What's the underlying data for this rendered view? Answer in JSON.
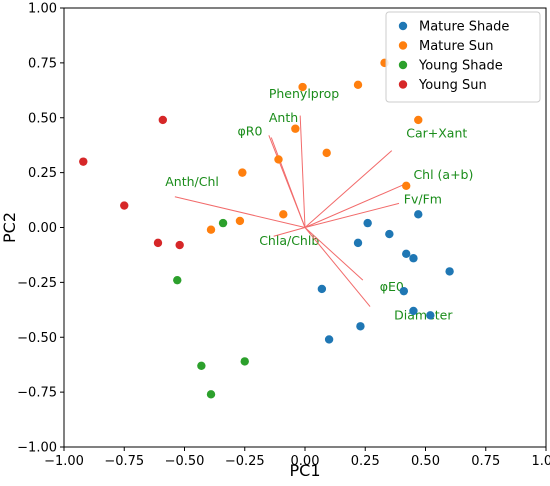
{
  "chart_data": {
    "type": "scatter",
    "xlabel": "PC1",
    "ylabel": "PC2",
    "xlim": [
      -1.0,
      1.0
    ],
    "ylim": [
      -1.0,
      1.0
    ],
    "xticks": [
      "−1.00",
      "−0.75",
      "−0.50",
      "−0.25",
      "0.00",
      "0.25",
      "0.50",
      "0.75",
      "1.00"
    ],
    "yticks": [
      "−1.00",
      "−0.75",
      "−0.50",
      "−0.25",
      "0.00",
      "0.25",
      "0.50",
      "0.75",
      "1.00"
    ],
    "xtick_values": [
      -1.0,
      -0.75,
      -0.5,
      -0.25,
      0.0,
      0.25,
      0.5,
      0.75,
      1.0
    ],
    "ytick_values": [
      -1.0,
      -0.75,
      -0.5,
      -0.25,
      0.0,
      0.25,
      0.5,
      0.75,
      1.0
    ],
    "grid": false,
    "legend_position": "top-right",
    "series": [
      {
        "name": "Mature Shade",
        "color": "#1f77b4",
        "points": [
          [
            0.26,
            0.02
          ],
          [
            0.22,
            -0.07
          ],
          [
            0.35,
            -0.03
          ],
          [
            0.42,
            -0.12
          ],
          [
            0.45,
            -0.14
          ],
          [
            0.47,
            0.06
          ],
          [
            0.6,
            -0.2
          ],
          [
            0.07,
            -0.28
          ],
          [
            0.41,
            -0.29
          ],
          [
            0.1,
            -0.51
          ],
          [
            0.23,
            -0.45
          ],
          [
            0.45,
            -0.38
          ],
          [
            0.52,
            -0.4
          ]
        ]
      },
      {
        "name": "Mature Sun",
        "color": "#ff7f0e",
        "points": [
          [
            -0.01,
            0.64
          ],
          [
            0.22,
            0.65
          ],
          [
            0.33,
            0.75
          ],
          [
            0.47,
            0.49
          ],
          [
            -0.04,
            0.45
          ],
          [
            -0.11,
            0.31
          ],
          [
            0.09,
            0.34
          ],
          [
            -0.26,
            0.25
          ],
          [
            0.42,
            0.19
          ],
          [
            -0.09,
            0.06
          ],
          [
            -0.27,
            0.03
          ],
          [
            -0.39,
            -0.01
          ]
        ]
      },
      {
        "name": "Young Shade",
        "color": "#2ca02c",
        "points": [
          [
            -0.34,
            0.02
          ],
          [
            -0.53,
            -0.24
          ],
          [
            -0.43,
            -0.63
          ],
          [
            -0.25,
            -0.61
          ],
          [
            -0.39,
            -0.76
          ]
        ]
      },
      {
        "name": "Young Sun",
        "color": "#d62728",
        "points": [
          [
            -0.59,
            0.49
          ],
          [
            -0.92,
            0.3
          ],
          [
            -0.75,
            0.1
          ],
          [
            -0.61,
            -0.07
          ],
          [
            -0.52,
            -0.08
          ]
        ]
      }
    ],
    "loadings": [
      {
        "label": "Phenylprop",
        "end": [
          -0.02,
          0.51
        ],
        "label_at": [
          -0.15,
          0.59
        ]
      },
      {
        "label": "Anth",
        "end": [
          -0.15,
          0.42
        ],
        "label_at": [
          -0.15,
          0.48
        ]
      },
      {
        "label": "φR0",
        "end": [
          -0.14,
          0.41
        ],
        "label_at": [
          -0.28,
          0.42
        ]
      },
      {
        "label": "Anth/Chl",
        "end": [
          -0.54,
          0.14
        ],
        "label_at": [
          -0.58,
          0.19
        ]
      },
      {
        "label": "Car+Xant",
        "end": [
          0.36,
          0.35
        ],
        "label_at": [
          0.42,
          0.41
        ]
      },
      {
        "label": "Chl (a+b)",
        "end": [
          0.42,
          0.2
        ],
        "label_at": [
          0.45,
          0.22
        ]
      },
      {
        "label": "Fv/Fm",
        "end": [
          0.39,
          0.11
        ],
        "label_at": [
          0.41,
          0.11
        ]
      },
      {
        "label": "Chla/Chlb",
        "end": [
          -0.13,
          -0.04
        ],
        "label_at": [
          -0.19,
          -0.08
        ]
      },
      {
        "label": "φE0",
        "end": [
          0.24,
          -0.24
        ],
        "label_at": [
          0.31,
          -0.29
        ]
      },
      {
        "label": "Diameter",
        "end": [
          0.27,
          -0.36
        ],
        "label_at": [
          0.37,
          -0.42
        ]
      }
    ]
  }
}
